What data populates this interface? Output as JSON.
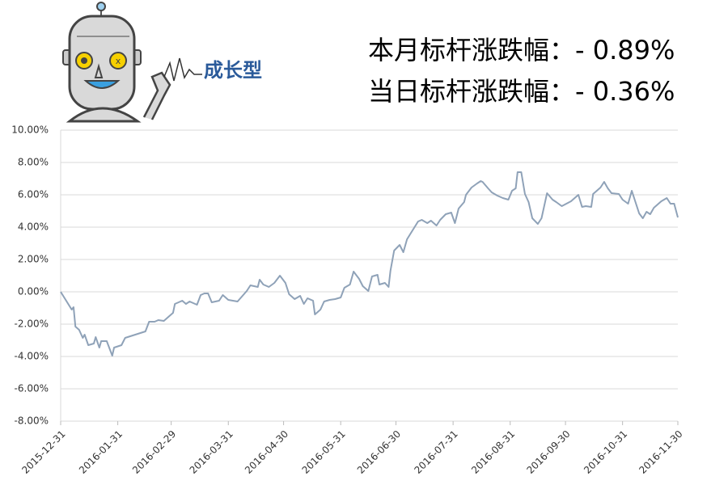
{
  "logo_text": "成长型",
  "header": {
    "lines": [
      "本月标杆涨跌幅：- 0.89%",
      "当日标杆涨跌幅：- 0.36%"
    ]
  },
  "chart_data": {
    "type": "line",
    "x": [
      "2015-12-31",
      "2016-01-03",
      "2016-01-06",
      "2016-01-07",
      "2016-01-08",
      "2016-01-10",
      "2016-01-12",
      "2016-01-13",
      "2016-01-15",
      "2016-01-18",
      "2016-01-19",
      "2016-01-21",
      "2016-01-22",
      "2016-01-25",
      "2016-01-28",
      "2016-01-29",
      "2016-02-02",
      "2016-02-04",
      "2016-02-15",
      "2016-02-17",
      "2016-02-20",
      "2016-02-22",
      "2016-02-25",
      "2016-03-01",
      "2016-03-02",
      "2016-03-06",
      "2016-03-08",
      "2016-03-10",
      "2016-03-14",
      "2016-03-16",
      "2016-03-18",
      "2016-03-20",
      "2016-03-22",
      "2016-03-26",
      "2016-03-28",
      "2016-03-31",
      "2016-04-05",
      "2016-04-10",
      "2016-04-12",
      "2016-04-16",
      "2016-04-17",
      "2016-04-19",
      "2016-04-22",
      "2016-04-25",
      "2016-04-28",
      "2016-05-01",
      "2016-05-03",
      "2016-05-06",
      "2016-05-09",
      "2016-05-11",
      "2016-05-13",
      "2016-05-16",
      "2016-05-17",
      "2016-05-20",
      "2016-05-22",
      "2016-05-25",
      "2016-05-28",
      "2016-05-31",
      "2016-06-02",
      "2016-06-05",
      "2016-06-07",
      "2016-06-10",
      "2016-06-12",
      "2016-06-15",
      "2016-06-17",
      "2016-06-20",
      "2016-06-21",
      "2016-06-24",
      "2016-06-26",
      "2016-06-27",
      "2016-06-29",
      "2016-07-02",
      "2016-07-04",
      "2016-07-06",
      "2016-07-09",
      "2016-07-12",
      "2016-07-14",
      "2016-07-17",
      "2016-07-19",
      "2016-07-22",
      "2016-07-24",
      "2016-07-27",
      "2016-07-30",
      "2016-08-01",
      "2016-08-03",
      "2016-08-06",
      "2016-08-07",
      "2016-08-10",
      "2016-08-13",
      "2016-08-15",
      "2016-08-16",
      "2016-08-19",
      "2016-08-21",
      "2016-08-24",
      "2016-08-27",
      "2016-08-30",
      "2016-09-01",
      "2016-09-03",
      "2016-09-04",
      "2016-09-06",
      "2016-09-08",
      "2016-09-10",
      "2016-09-12",
      "2016-09-15",
      "2016-09-17",
      "2016-09-20",
      "2016-09-23",
      "2016-09-25",
      "2016-09-28",
      "2016-10-03",
      "2016-10-07",
      "2016-10-09",
      "2016-10-11",
      "2016-10-14",
      "2016-10-15",
      "2016-10-19",
      "2016-10-21",
      "2016-10-23",
      "2016-10-25",
      "2016-10-29",
      "2016-10-31",
      "2016-11-03",
      "2016-11-05",
      "2016-11-07",
      "2016-11-09",
      "2016-11-11",
      "2016-11-13",
      "2016-11-15",
      "2016-11-17",
      "2016-11-21",
      "2016-11-24",
      "2016-11-26",
      "2016-11-28",
      "2016-11-30"
    ],
    "series": [
      {
        "color": "#8fa2b8",
        "values": [
          0.0,
          -0.55,
          -1.1,
          -0.95,
          -2.15,
          -2.35,
          -2.85,
          -2.65,
          -3.3,
          -3.2,
          -2.8,
          -3.45,
          -3.05,
          -3.05,
          -3.95,
          -3.45,
          -3.3,
          -2.85,
          -2.45,
          -1.85,
          -1.85,
          -1.75,
          -1.8,
          -1.3,
          -0.75,
          -0.55,
          -0.75,
          -0.6,
          -0.8,
          -0.2,
          -0.1,
          -0.1,
          -0.65,
          -0.55,
          -0.2,
          -0.5,
          -0.6,
          0.05,
          0.4,
          0.3,
          0.75,
          0.45,
          0.3,
          0.55,
          1.0,
          0.55,
          -0.15,
          -0.45,
          -0.25,
          -0.75,
          -0.4,
          -0.55,
          -1.4,
          -1.1,
          -0.6,
          -0.5,
          -0.45,
          -0.35,
          0.25,
          0.45,
          1.25,
          0.8,
          0.35,
          0.05,
          0.95,
          1.05,
          0.45,
          0.55,
          0.3,
          1.3,
          2.55,
          2.9,
          2.45,
          3.25,
          3.8,
          4.35,
          4.45,
          4.25,
          4.4,
          4.1,
          4.45,
          4.8,
          4.9,
          4.25,
          5.15,
          5.55,
          6.0,
          6.45,
          6.7,
          6.85,
          6.8,
          6.4,
          6.15,
          5.95,
          5.8,
          5.7,
          6.25,
          6.4,
          7.4,
          7.4,
          6.05,
          5.55,
          4.55,
          4.2,
          4.55,
          6.1,
          5.7,
          5.55,
          5.3,
          5.6,
          6.0,
          5.25,
          5.3,
          5.25,
          6.05,
          6.45,
          6.8,
          6.4,
          6.1,
          6.05,
          5.7,
          5.45,
          6.25,
          5.55,
          4.85,
          4.55,
          4.95,
          4.8,
          5.2,
          5.6,
          5.8,
          5.45,
          5.45,
          4.6
        ]
      }
    ],
    "xlim": [
      "2015-12-31",
      "2016-11-30"
    ],
    "xticks": [
      "2015-12-31",
      "2016-01-31",
      "2016-02-29",
      "2016-03-31",
      "2016-04-30",
      "2016-05-31",
      "2016-06-30",
      "2016-07-31",
      "2016-08-31",
      "2016-09-30",
      "2016-10-31",
      "2016-11-30"
    ],
    "ylim": [
      -8,
      10
    ],
    "yticks": [
      {
        "value": -8,
        "label": "-8.00%"
      },
      {
        "value": -6,
        "label": "-6.00%"
      },
      {
        "value": -4,
        "label": "-4.00%"
      },
      {
        "value": -2,
        "label": "-2.00%"
      },
      {
        "value": 0,
        "label": "0.00%"
      },
      {
        "value": 2,
        "label": "2.00%"
      },
      {
        "value": 4,
        "label": "4.00%"
      },
      {
        "value": 6,
        "label": "6.00%"
      },
      {
        "value": 8,
        "label": "8.00%"
      },
      {
        "value": 10,
        "label": "10.00%"
      }
    ],
    "grid": true
  }
}
